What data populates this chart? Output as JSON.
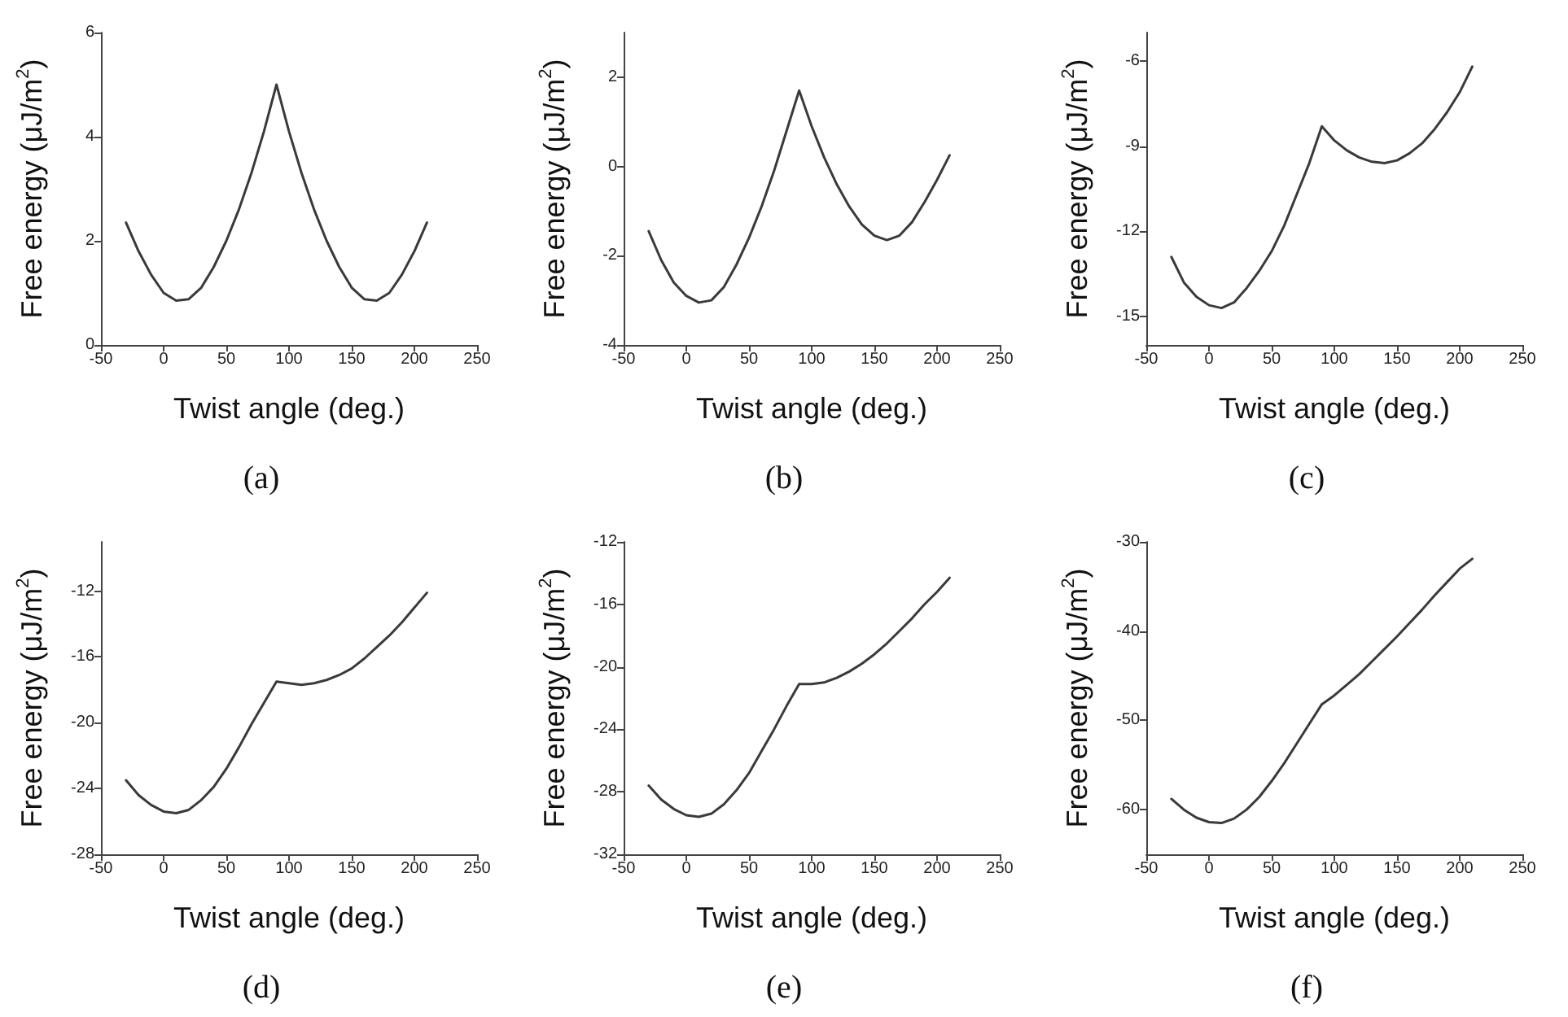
{
  "chart_data": [
    {
      "type": "line",
      "annotations": [
        "(a)"
      ],
      "xlabel": "Twist angle (deg.)",
      "ylabel": "Free energy (μJ/m$^{2}$)",
      "xlim": [
        -50,
        250
      ],
      "xticks": [
        -50,
        0,
        50,
        100,
        150,
        200,
        250
      ],
      "ylim": [
        0,
        6
      ],
      "yticks": [
        0,
        2,
        4,
        6
      ],
      "grid": false,
      "marker": "none",
      "line_style": "solid",
      "x": [
        -30,
        -20,
        -10,
        0,
        10,
        20,
        30,
        40,
        50,
        60,
        70,
        80,
        90,
        100,
        110,
        120,
        130,
        140,
        150,
        160,
        170,
        180,
        190,
        200,
        210
      ],
      "series": [
        {
          "color": "#3a3a3a",
          "values": [
            2.35,
            1.8,
            1.35,
            1.0,
            0.85,
            0.88,
            1.1,
            1.5,
            2.0,
            2.6,
            3.3,
            4.1,
            5.0,
            4.1,
            3.3,
            2.6,
            2.0,
            1.5,
            1.1,
            0.88,
            0.85,
            1.0,
            1.35,
            1.8,
            2.35
          ]
        }
      ]
    },
    {
      "type": "line",
      "annotations": [
        "(b)"
      ],
      "xlabel": "Twist angle (deg.)",
      "ylabel": "Free energy (μJ/m$^{2}$)",
      "xlim": [
        -50,
        250
      ],
      "xticks": [
        -50,
        0,
        50,
        100,
        150,
        200,
        250
      ],
      "ylim": [
        -4,
        3
      ],
      "yticks": [
        -4,
        -2,
        0,
        2
      ],
      "grid": false,
      "marker": "none",
      "line_style": "solid",
      "x": [
        -30,
        -20,
        -10,
        0,
        10,
        20,
        30,
        40,
        50,
        60,
        70,
        80,
        90,
        100,
        110,
        120,
        130,
        140,
        150,
        160,
        170,
        180,
        190,
        200,
        210
      ],
      "series": [
        {
          "color": "#3a3a3a",
          "values": [
            -1.45,
            -2.1,
            -2.6,
            -2.9,
            -3.05,
            -3.0,
            -2.7,
            -2.2,
            -1.6,
            -0.9,
            -0.1,
            0.8,
            1.7,
            0.9,
            0.2,
            -0.4,
            -0.9,
            -1.3,
            -1.55,
            -1.65,
            -1.55,
            -1.25,
            -0.8,
            -0.3,
            0.25
          ]
        }
      ]
    },
    {
      "type": "line",
      "annotations": [
        "(c)"
      ],
      "xlabel": "Twist angle (deg.)",
      "ylabel": "Free energy (μJ/m$^{2}$)",
      "xlim": [
        -50,
        250
      ],
      "xticks": [
        -50,
        0,
        50,
        100,
        150,
        200,
        250
      ],
      "ylim": [
        -16,
        -5
      ],
      "yticks": [
        -15,
        -12,
        -9,
        -6
      ],
      "grid": false,
      "marker": "none",
      "line_style": "solid",
      "x": [
        -30,
        -20,
        -10,
        0,
        10,
        20,
        30,
        40,
        50,
        60,
        70,
        80,
        90,
        100,
        110,
        120,
        130,
        140,
        150,
        160,
        170,
        180,
        190,
        200,
        210
      ],
      "series": [
        {
          "color": "#3a3a3a",
          "values": [
            -12.9,
            -13.8,
            -14.3,
            -14.6,
            -14.7,
            -14.5,
            -14.0,
            -13.4,
            -12.7,
            -11.8,
            -10.7,
            -9.6,
            -8.3,
            -8.8,
            -9.15,
            -9.4,
            -9.55,
            -9.6,
            -9.5,
            -9.25,
            -8.9,
            -8.4,
            -7.8,
            -7.1,
            -6.2
          ]
        }
      ]
    },
    {
      "type": "line",
      "annotations": [
        "(d)"
      ],
      "xlabel": "Twist angle (deg.)",
      "ylabel": "Free energy (μJ/m$^{2}$)",
      "xlim": [
        -50,
        250
      ],
      "xticks": [
        -50,
        0,
        50,
        100,
        150,
        200,
        250
      ],
      "ylim": [
        -28,
        -9
      ],
      "yticks": [
        -28,
        -24,
        -20,
        -16,
        -12
      ],
      "grid": false,
      "marker": "none",
      "line_style": "solid",
      "x": [
        -30,
        -20,
        -10,
        0,
        10,
        20,
        30,
        40,
        50,
        60,
        70,
        80,
        90,
        100,
        110,
        120,
        130,
        140,
        150,
        160,
        170,
        180,
        190,
        200,
        210
      ],
      "series": [
        {
          "color": "#3a3a3a",
          "values": [
            -23.5,
            -24.4,
            -25.0,
            -25.4,
            -25.5,
            -25.3,
            -24.7,
            -23.9,
            -22.8,
            -21.5,
            -20.1,
            -18.8,
            -17.5,
            -17.6,
            -17.7,
            -17.6,
            -17.4,
            -17.1,
            -16.7,
            -16.1,
            -15.4,
            -14.7,
            -13.9,
            -13.0,
            -12.1
          ]
        }
      ]
    },
    {
      "type": "line",
      "annotations": [
        "(e)"
      ],
      "xlabel": "Twist angle (deg.)",
      "ylabel": "Free energy (μJ/m$^{2}$)",
      "xlim": [
        -50,
        250
      ],
      "xticks": [
        -50,
        0,
        50,
        100,
        150,
        200,
        250
      ],
      "ylim": [
        -32,
        -12
      ],
      "yticks": [
        -32,
        -28,
        -24,
        -20,
        -16,
        -12
      ],
      "grid": false,
      "marker": "none",
      "line_style": "solid",
      "x": [
        -30,
        -20,
        -10,
        0,
        10,
        20,
        30,
        40,
        50,
        60,
        70,
        80,
        90,
        100,
        110,
        120,
        130,
        140,
        150,
        160,
        170,
        180,
        190,
        200,
        210
      ],
      "series": [
        {
          "color": "#3a3a3a",
          "values": [
            -27.6,
            -28.5,
            -29.1,
            -29.5,
            -29.6,
            -29.4,
            -28.8,
            -27.9,
            -26.8,
            -25.4,
            -24.0,
            -22.5,
            -21.1,
            -21.1,
            -21.0,
            -20.7,
            -20.3,
            -19.8,
            -19.2,
            -18.5,
            -17.7,
            -16.9,
            -16.0,
            -15.2,
            -14.3
          ]
        }
      ]
    },
    {
      "type": "line",
      "annotations": [
        "(f)"
      ],
      "xlabel": "Twist angle (deg.)",
      "ylabel": "Free energy (μJ/m$^{2}$)",
      "xlim": [
        -50,
        250
      ],
      "xticks": [
        -50,
        0,
        50,
        100,
        150,
        200,
        250
      ],
      "ylim": [
        -65,
        -30
      ],
      "yticks": [
        -60,
        -50,
        -40,
        -30
      ],
      "grid": false,
      "marker": "none",
      "line_style": "solid",
      "x": [
        -30,
        -20,
        -10,
        0,
        10,
        20,
        30,
        40,
        50,
        60,
        70,
        80,
        90,
        100,
        110,
        120,
        130,
        140,
        150,
        160,
        170,
        180,
        190,
        200,
        210
      ],
      "series": [
        {
          "color": "#3a3a3a",
          "values": [
            -58.8,
            -60.0,
            -60.9,
            -61.4,
            -61.5,
            -61.0,
            -60.0,
            -58.6,
            -56.8,
            -54.8,
            -52.6,
            -50.4,
            -48.2,
            -47.2,
            -46.0,
            -44.8,
            -43.4,
            -42.0,
            -40.6,
            -39.1,
            -37.6,
            -36.0,
            -34.5,
            -33.0,
            -31.9
          ]
        }
      ]
    }
  ]
}
